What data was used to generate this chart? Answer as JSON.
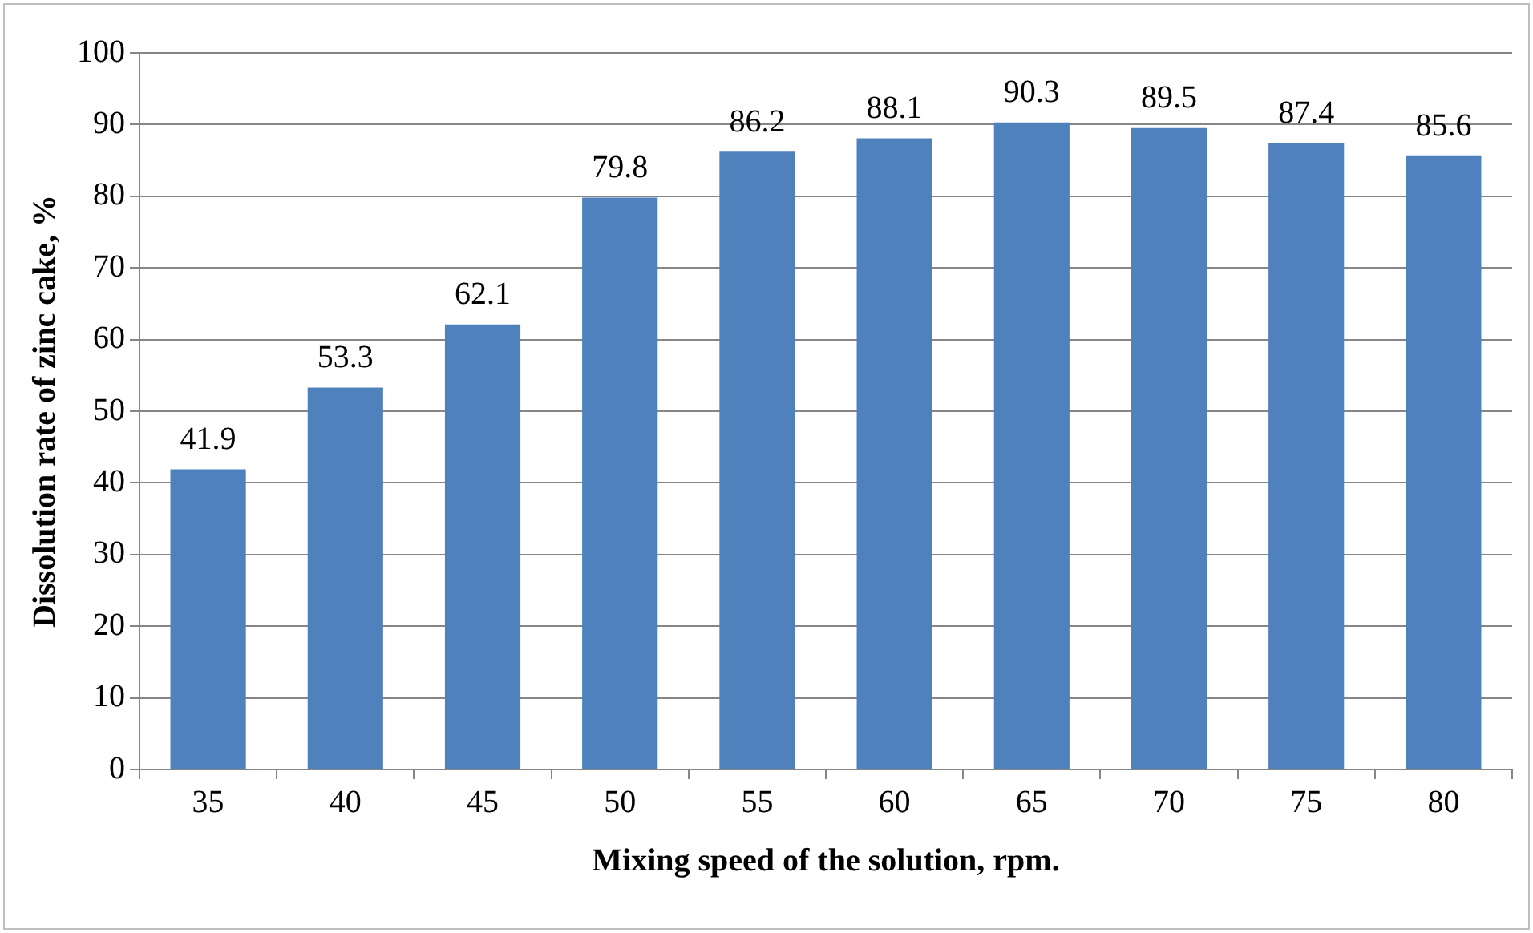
{
  "chart_data": {
    "type": "bar",
    "xlabel": "Mixing speed of the solution, rpm.",
    "ylabel": "Dissolution rate of zinc cake, %",
    "categories": [
      "35",
      "40",
      "45",
      "50",
      "55",
      "60",
      "65",
      "70",
      "75",
      "80"
    ],
    "values": [
      41.9,
      53.3,
      62.1,
      79.8,
      86.2,
      88.1,
      90.3,
      89.5,
      87.4,
      85.6
    ],
    "color": "#4f81bd",
    "ylim": [
      0,
      100
    ],
    "yticks": [
      0,
      10,
      20,
      30,
      40,
      50,
      60,
      70,
      80,
      90,
      100
    ],
    "grid": "y",
    "legend": false,
    "data_labels": true
  }
}
